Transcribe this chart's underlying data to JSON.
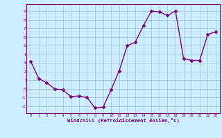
{
  "x": [
    0,
    1,
    2,
    3,
    4,
    5,
    6,
    7,
    8,
    9,
    10,
    11,
    12,
    13,
    14,
    15,
    16,
    17,
    18,
    19,
    20,
    21,
    22,
    23
  ],
  "y": [
    3.2,
    1.2,
    0.7,
    0.0,
    -0.1,
    -0.9,
    -0.8,
    -1.0,
    -2.2,
    -2.1,
    -0.1,
    2.1,
    5.0,
    5.4,
    7.3,
    9.0,
    8.9,
    8.5,
    9.0,
    3.5,
    3.3,
    3.3,
    6.3,
    6.6
  ],
  "line_color": "#800080",
  "marker": "D",
  "marker_size": 2,
  "bg_color": "#cceeff",
  "grid_color": "#aaccd8",
  "xlabel": "Windchill (Refroidissement éolien,°C)",
  "xlabel_color": "#800080",
  "tick_color": "#800080",
  "ylim": [
    -2.8,
    9.8
  ],
  "xlim": [
    -0.5,
    23.5
  ],
  "yticks": [
    -2,
    -1,
    0,
    1,
    2,
    3,
    4,
    5,
    6,
    7,
    8,
    9
  ],
  "xticks": [
    0,
    1,
    2,
    3,
    4,
    5,
    6,
    7,
    8,
    9,
    10,
    11,
    12,
    13,
    14,
    15,
    16,
    17,
    18,
    19,
    20,
    21,
    22,
    23
  ],
  "line_width": 1.0,
  "spine_color": "#800080"
}
